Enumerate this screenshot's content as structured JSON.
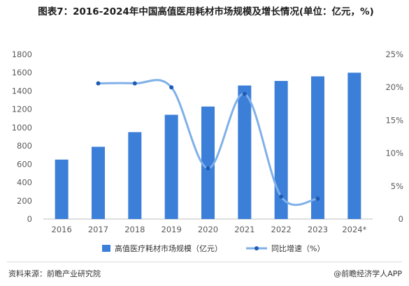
{
  "title": "图表7：2016-2024年中国高值医用耗材市场规模及增长情况(单位：亿元，%)",
  "chart_data": {
    "type": "bar",
    "categories": [
      "2016",
      "2017",
      "2018",
      "2019",
      "2020",
      "2021",
      "2022",
      "2023",
      "2024*"
    ],
    "series": [
      {
        "name": "高值医疗耗材市场规模（亿元）",
        "type": "bar",
        "axis": "left",
        "color": "#3c7fd9",
        "values": [
          650,
          790,
          950,
          1140,
          1230,
          1460,
          1510,
          1560,
          1600
        ]
      },
      {
        "name": "同比增速（%）",
        "type": "line",
        "axis": "right",
        "color": "#7fb0e8",
        "marker_color": "#1f5bb5",
        "values": [
          null,
          20.6,
          20.6,
          20.0,
          7.7,
          19.0,
          3.4,
          3.1,
          null
        ]
      }
    ],
    "y_left": {
      "lim": [
        0,
        1800
      ],
      "ticks": [
        "0",
        "200",
        "400",
        "600",
        "800",
        "1000",
        "1200",
        "1400",
        "1600",
        "1800"
      ]
    },
    "y_right": {
      "lim": [
        0,
        25
      ],
      "ticks": [
        "0",
        "5%",
        "10%",
        "15%",
        "20%",
        "25%"
      ]
    },
    "grid": false,
    "legend": "bottom"
  },
  "footer": {
    "source": "资料来源：前瞻产业研究院",
    "brand": "@前瞻经济学人APP"
  }
}
